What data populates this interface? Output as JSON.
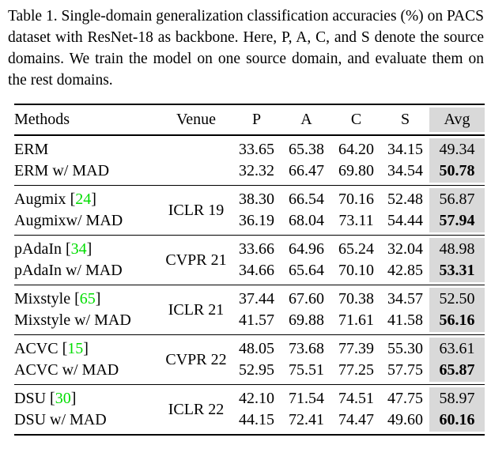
{
  "caption": "Table 1.  Single-domain generalization classification accuracies (%) on PACS dataset with ResNet-18 as backbone. Here, P, A, C, and S denote the source domains. We train the model on one source domain, and evaluate them on the rest domains.",
  "colors": {
    "avg_highlight": "#d9d9d9",
    "citation_green": "#00dd00"
  },
  "symbols": {
    "bracket_open": "[",
    "bracket_close": "]"
  },
  "table": {
    "headers": {
      "methods": "Methods",
      "venue": "Venue",
      "p": "P",
      "a": "A",
      "c": "C",
      "s": "S",
      "avg": "Avg"
    },
    "groups": [
      {
        "venue": "",
        "rows": [
          {
            "method": "ERM",
            "p": "33.65",
            "a": "65.38",
            "c": "64.20",
            "s": "34.15",
            "avg": "49.34"
          },
          {
            "method": "ERM w/ MAD",
            "p": "32.32",
            "a": "66.47",
            "c": "69.80",
            "s": "34.54",
            "avg": "50.78"
          }
        ]
      },
      {
        "venue": "ICLR 19",
        "cite": "24",
        "rows": [
          {
            "method": "Augmix",
            "p": "38.30",
            "a": "66.54",
            "c": "70.16",
            "s": "52.48",
            "avg": "56.87"
          },
          {
            "method": "Augmixw/ MAD",
            "p": "36.19",
            "a": "68.04",
            "c": "73.11",
            "s": "54.44",
            "avg": "57.94"
          }
        ]
      },
      {
        "venue": "CVPR 21",
        "cite": "34",
        "rows": [
          {
            "method": "pAdaIn",
            "p": "33.66",
            "a": "64.96",
            "c": "65.24",
            "s": "32.04",
            "avg": "48.98"
          },
          {
            "method": "pAdaIn w/ MAD",
            "p": "34.66",
            "a": "65.64",
            "c": "70.10",
            "s": "42.85",
            "avg": "53.31"
          }
        ]
      },
      {
        "venue": "ICLR 21",
        "cite": "65",
        "rows": [
          {
            "method": "Mixstyle",
            "p": "37.44",
            "a": "67.60",
            "c": "70.38",
            "s": "34.57",
            "avg": "52.50"
          },
          {
            "method": "Mixstyle w/ MAD",
            "p": "41.57",
            "a": "69.88",
            "c": "71.61",
            "s": "41.58",
            "avg": "56.16"
          }
        ]
      },
      {
        "venue": "CVPR 22",
        "cite": "15",
        "rows": [
          {
            "method": "ACVC",
            "p": "48.05",
            "a": "73.68",
            "c": "77.39",
            "s": "55.30",
            "avg": "63.61"
          },
          {
            "method": "ACVC w/ MAD",
            "p": "52.95",
            "a": "75.51",
            "c": "77.25",
            "s": "57.75",
            "avg": "65.87"
          }
        ]
      },
      {
        "venue": "ICLR 22",
        "cite": "30",
        "rows": [
          {
            "method": "DSU",
            "p": "42.10",
            "a": "71.54",
            "c": "74.51",
            "s": "47.75",
            "avg": "58.97"
          },
          {
            "method": "DSU w/ MAD",
            "p": "44.15",
            "a": "72.41",
            "c": "74.47",
            "s": "49.60",
            "avg": "60.16"
          }
        ]
      }
    ]
  }
}
